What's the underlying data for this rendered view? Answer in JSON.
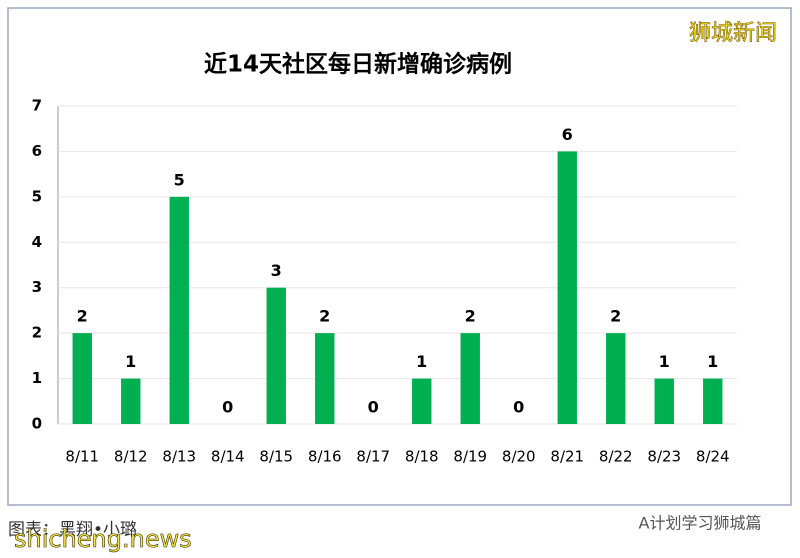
{
  "chart_data": {
    "type": "bar",
    "title": "近14天社区每日新增确诊病例",
    "categories": [
      "8/11",
      "8/12",
      "8/13",
      "8/14",
      "8/15",
      "8/16",
      "8/17",
      "8/18",
      "8/19",
      "8/20",
      "8/21",
      "8/22",
      "8/23",
      "8/24"
    ],
    "values": [
      2,
      1,
      5,
      0,
      3,
      2,
      0,
      1,
      2,
      0,
      6,
      2,
      1,
      1
    ],
    "color": "#00b050",
    "ylim": [
      0,
      7
    ],
    "yticks": [
      0,
      1,
      2,
      3,
      4,
      5,
      6,
      7
    ],
    "grid": true,
    "data_labels": true
  },
  "badge": "狮城新闻",
  "credit": "图表：黑翔•小璐",
  "site": "shicheng.news",
  "account": "A计划学习狮城篇"
}
